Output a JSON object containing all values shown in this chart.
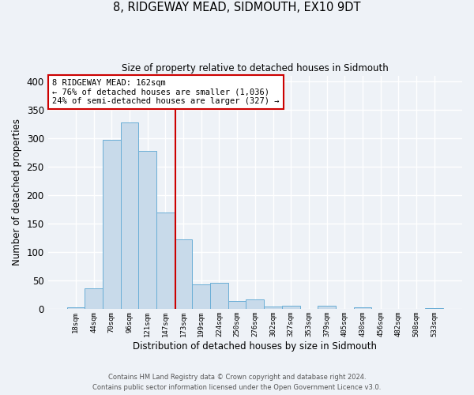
{
  "title": "8, RIDGEWAY MEAD, SIDMOUTH, EX10 9DT",
  "subtitle": "Size of property relative to detached houses in Sidmouth",
  "xlabel": "Distribution of detached houses by size in Sidmouth",
  "ylabel": "Number of detached properties",
  "bin_labels": [
    "18sqm",
    "44sqm",
    "70sqm",
    "96sqm",
    "121sqm",
    "147sqm",
    "173sqm",
    "199sqm",
    "224sqm",
    "250sqm",
    "276sqm",
    "302sqm",
    "327sqm",
    "353sqm",
    "379sqm",
    "405sqm",
    "430sqm",
    "456sqm",
    "482sqm",
    "508sqm",
    "533sqm"
  ],
  "bar_heights": [
    4,
    37,
    297,
    328,
    278,
    170,
    123,
    44,
    46,
    15,
    17,
    5,
    6,
    0,
    6,
    0,
    3,
    0,
    0,
    0,
    2
  ],
  "bar_color": "#c8daea",
  "bar_edge_color": "#6aaed6",
  "background_color": "#eef2f7",
  "grid_color": "#ffffff",
  "ylim": [
    0,
    410
  ],
  "yticks": [
    0,
    50,
    100,
    150,
    200,
    250,
    300,
    350,
    400
  ],
  "vline_color": "#cc0000",
  "vline_x_idx": 5.577,
  "annotation_title": "8 RIDGEWAY MEAD: 162sqm",
  "annotation_line1": "← 76% of detached houses are smaller (1,036)",
  "annotation_line2": "24% of semi-detached houses are larger (327) →",
  "annotation_box_color": "#ffffff",
  "annotation_border_color": "#cc0000",
  "footer_line1": "Contains HM Land Registry data © Crown copyright and database right 2024.",
  "footer_line2": "Contains public sector information licensed under the Open Government Licence v3.0."
}
